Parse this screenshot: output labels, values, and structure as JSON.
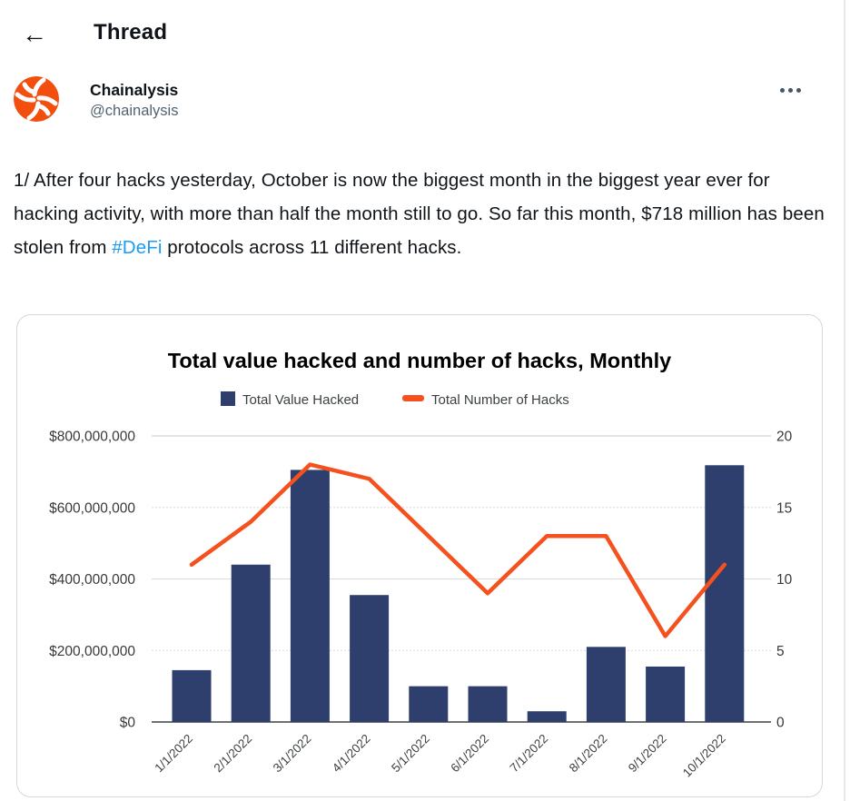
{
  "colors": {
    "link_blue": "#1d9bf0",
    "text_primary": "#0f1419",
    "text_secondary": "#536471",
    "avatar_orange": "#f24e0e",
    "bar_navy": "#2e3f6d",
    "line_orange": "#f4511e",
    "card_border": "#cfd9de"
  },
  "header": {
    "back_icon": "←",
    "title": "Thread"
  },
  "tweet": {
    "author": {
      "name": "Chainalysis",
      "handle": "@chainalysis"
    },
    "body_segments": [
      {
        "text": "1/ After four hacks yesterday, October is now the biggest month in the biggest year ever for hacking activity, with more than half the month still to go. So far this month, $718 million has been stolen from "
      },
      {
        "text": "#DeFi",
        "link": true
      },
      {
        "text": " protocols across 11 different hacks."
      }
    ]
  },
  "chart_data": {
    "type": "bar",
    "subtype": "combo-bar-line-dual-axis",
    "title": "Total value hacked and number of hacks, Monthly",
    "categories": [
      "1/1/2022",
      "2/1/2022",
      "3/1/2022",
      "4/1/2022",
      "5/1/2022",
      "6/1/2022",
      "7/1/2022",
      "8/1/2022",
      "9/1/2022",
      "10/1/2022"
    ],
    "series": [
      {
        "name": "Total Value Hacked",
        "type": "bar",
        "axis": "left",
        "color": "#2e3f6d",
        "values": [
          145000000,
          440000000,
          705000000,
          355000000,
          100000000,
          100000000,
          30000000,
          210000000,
          155000000,
          718000000
        ]
      },
      {
        "name": "Total Number of Hacks",
        "type": "line",
        "axis": "right",
        "color": "#f4511e",
        "values": [
          11,
          14,
          18,
          17,
          13,
          9,
          13,
          13,
          6,
          11
        ]
      }
    ],
    "left_axis": {
      "min": 0,
      "max": 800000000,
      "ticks": [
        "$0",
        "$200,000,000",
        "$400,000,000",
        "$600,000,000",
        "$800,000,000"
      ]
    },
    "right_axis": {
      "min": 0,
      "max": 20,
      "ticks": [
        "0",
        "5",
        "10",
        "15",
        "20"
      ]
    },
    "grid": true,
    "legend_position": "top"
  }
}
